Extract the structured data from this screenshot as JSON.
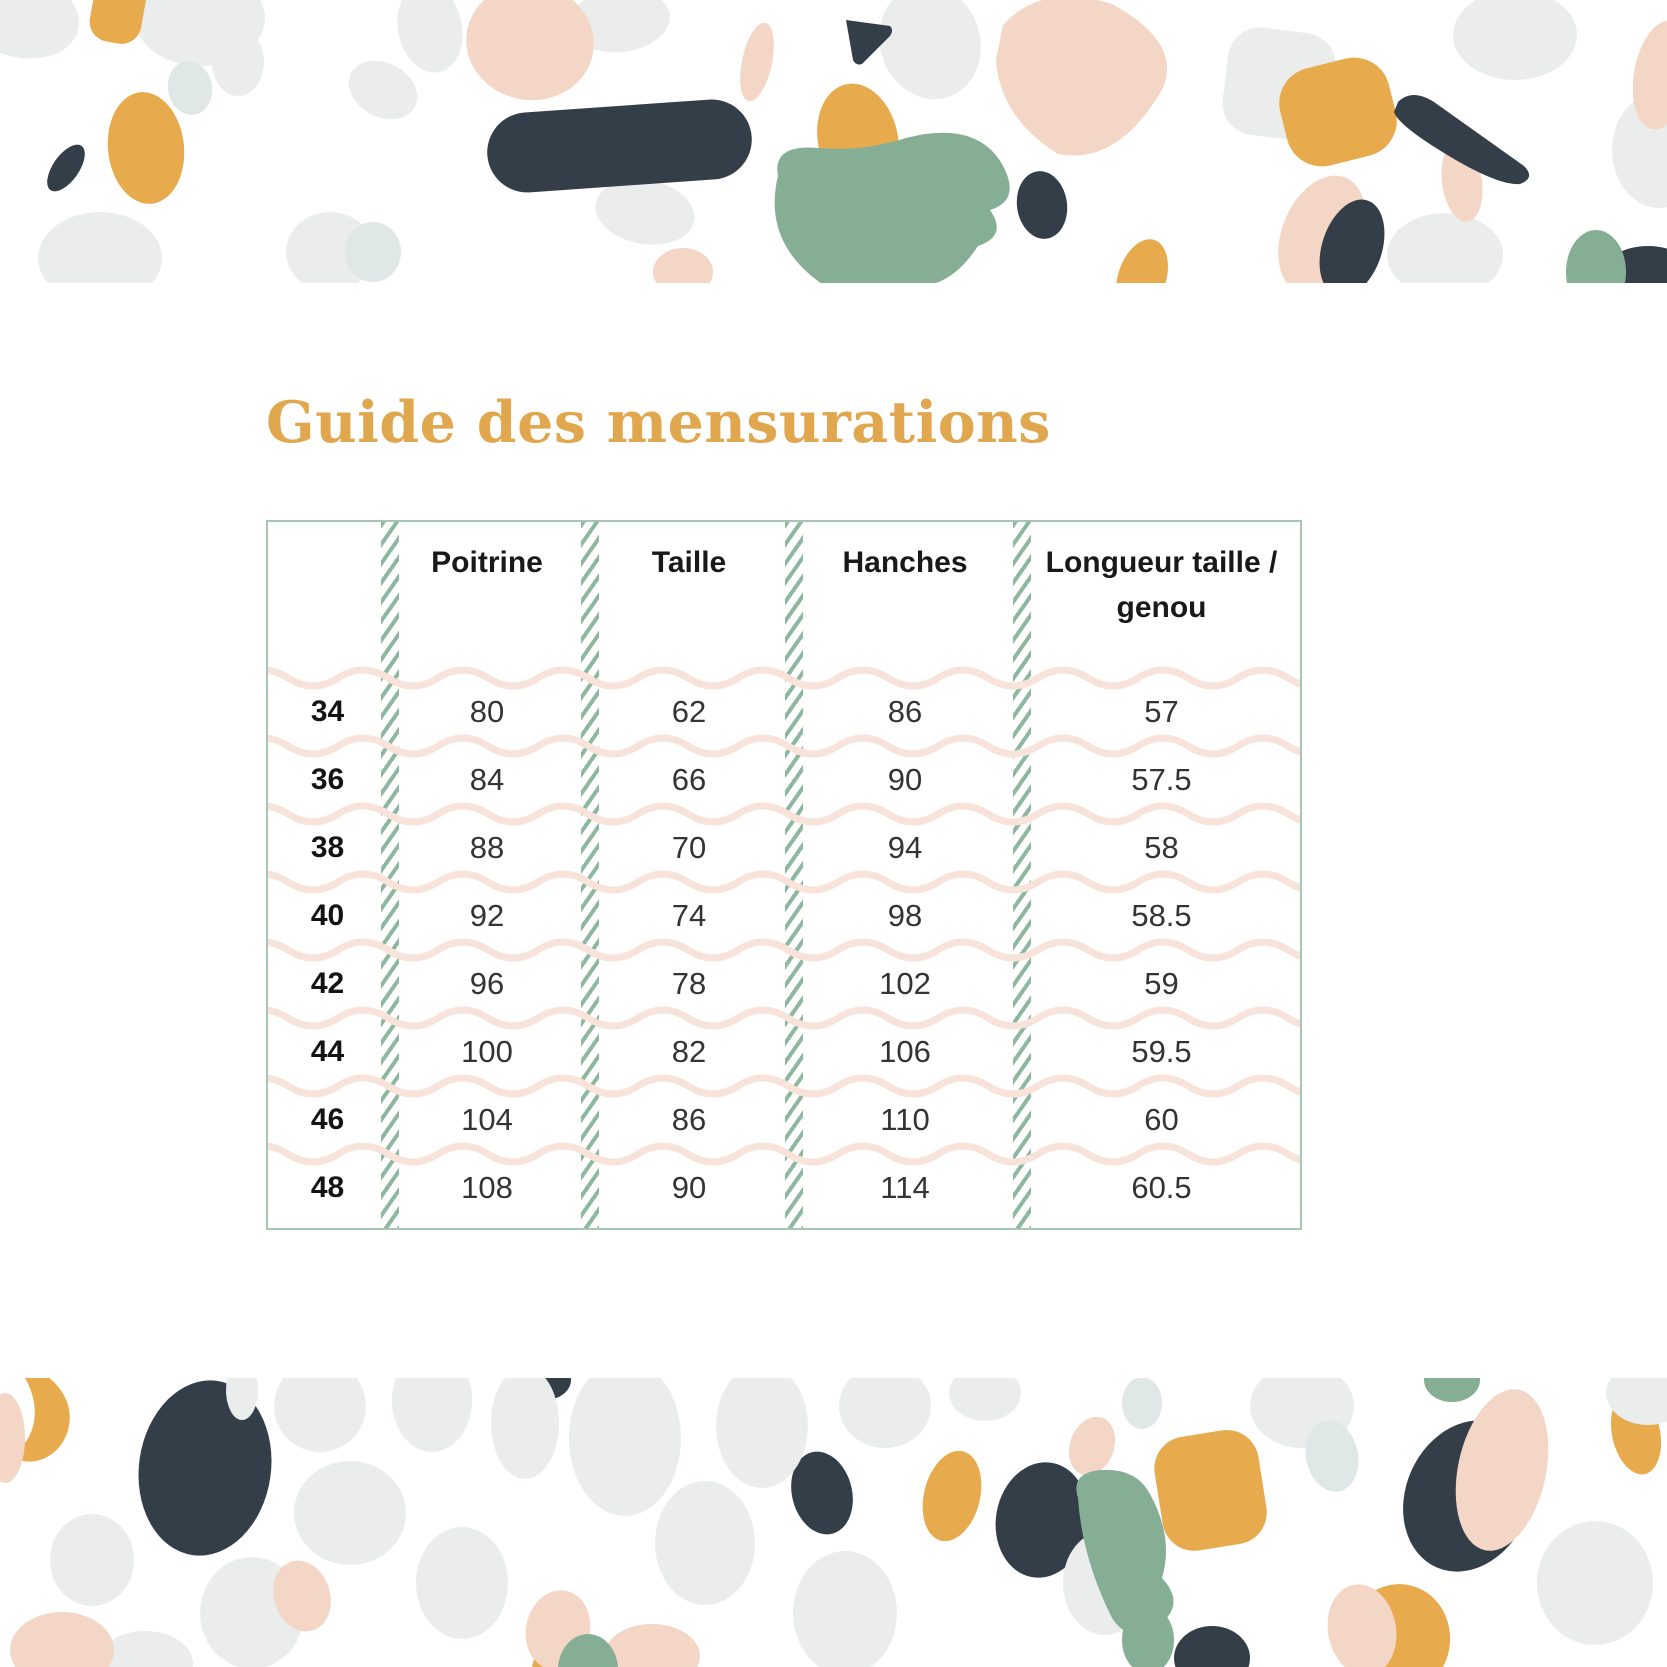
{
  "title": {
    "text": "Guide des mensurations",
    "color": "#e0a74e"
  },
  "table": {
    "columns": [
      "",
      "Poitrine",
      "Taille",
      "Hanches",
      "Longueur taille / genou"
    ],
    "rows": [
      [
        "34",
        "80",
        "62",
        "86",
        "57"
      ],
      [
        "36",
        "84",
        "66",
        "90",
        "57.5"
      ],
      [
        "38",
        "88",
        "70",
        "94",
        "58"
      ],
      [
        "40",
        "92",
        "74",
        "98",
        "58.5"
      ],
      [
        "42",
        "96",
        "78",
        "102",
        "59"
      ],
      [
        "44",
        "100",
        "82",
        "106",
        "59.5"
      ],
      [
        "46",
        "104",
        "86",
        "110",
        "60"
      ],
      [
        "48",
        "108",
        "90",
        "114",
        "60.5"
      ]
    ],
    "style": {
      "border_color": "#a6c6b3",
      "hatch_separator_color": "#8db79e",
      "wave_separator_color": "#f8e3da"
    }
  },
  "terrazzo_palette": {
    "light_gray": "#ebedec",
    "pale_pink": "#f3d6c6",
    "mustard": "#e7ab4d",
    "dark_slate": "#333e49",
    "sage_green": "#86ae95",
    "pale_mint": "#dfe8e6"
  }
}
